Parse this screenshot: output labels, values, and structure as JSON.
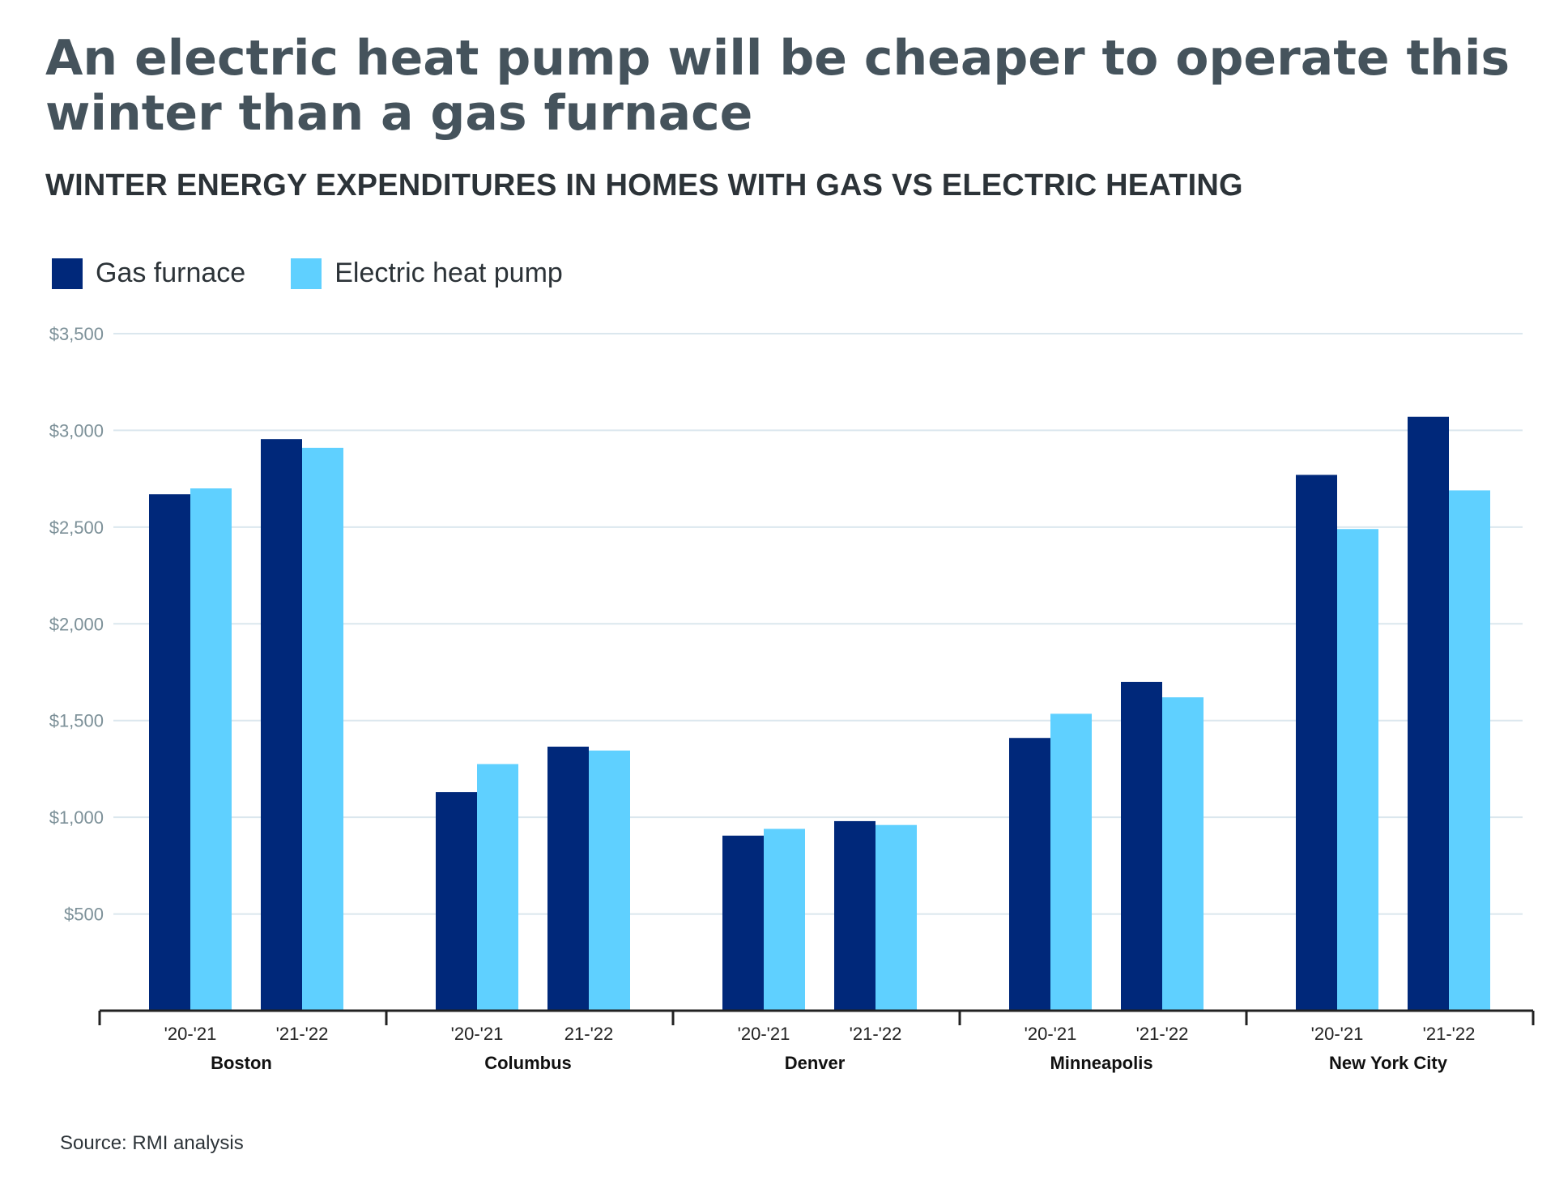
{
  "title": "An electric heat pump will be cheaper to operate this winter than a gas furnace",
  "subtitle": "WINTER ENERGY EXPENDITURES IN HOMES WITH GAS VS ELECTRIC HEATING",
  "source": "Source: RMI analysis",
  "colors": {
    "gas": "#00287a",
    "electric": "#5fd0ff",
    "grid": "#dbe7ee",
    "tick_text": "#7c9098",
    "axis": "#222222"
  },
  "chart_data": {
    "type": "bar",
    "ylim": [
      0,
      3500
    ],
    "yticks": [
      500,
      1000,
      1500,
      2000,
      2500,
      3000,
      3500
    ],
    "ytick_labels": [
      "$500",
      "$1,000",
      "$1,500",
      "$2,000",
      "$2,500",
      "$3,000",
      "$3,500"
    ],
    "grid": true,
    "legend_position": "top-left",
    "series": [
      {
        "name": "Gas furnace",
        "color": "#00287a",
        "values": [
          2670,
          2955,
          1130,
          1365,
          905,
          980,
          1410,
          1700,
          2770,
          3070
        ]
      },
      {
        "name": "Electric heat pump",
        "color": "#5fd0ff",
        "values": [
          2700,
          2910,
          1275,
          1345,
          940,
          960,
          1535,
          1620,
          2490,
          2690
        ]
      }
    ],
    "groups": [
      {
        "name": "Boston",
        "periods": [
          "'20-'21",
          "'21-'22"
        ]
      },
      {
        "name": "Columbus",
        "periods": [
          "'20-'21",
          "21-'22"
        ]
      },
      {
        "name": "Denver",
        "periods": [
          "'20-'21",
          "'21-'22"
        ]
      },
      {
        "name": "Minneapolis",
        "periods": [
          "'20-'21",
          "'21-'22"
        ]
      },
      {
        "name": "New York City",
        "periods": [
          "'20-'21",
          "'21-'22"
        ]
      }
    ]
  }
}
